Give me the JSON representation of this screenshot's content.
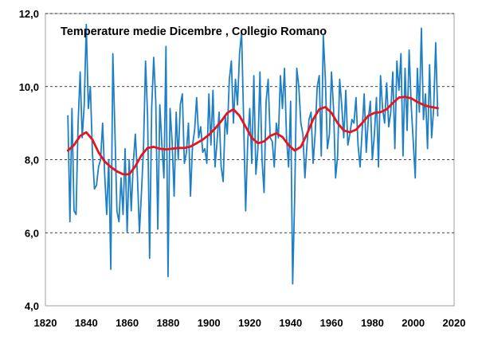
{
  "chart_data": {
    "type": "line",
    "title": "Temperature medie Dicembre  , Collegio Romano",
    "xlim": [
      1820,
      2020
    ],
    "ylim": [
      4,
      12
    ],
    "x_ticks": [
      1820,
      1840,
      1860,
      1880,
      1900,
      1920,
      1940,
      1960,
      1980,
      2000,
      2020
    ],
    "y_ticks": [
      4,
      6,
      8,
      10,
      12
    ],
    "x_tick_labels": [
      "1820",
      "1840",
      "1860",
      "1880",
      "1900",
      "1920",
      "1940",
      "1960",
      "1980",
      "2000",
      "2020"
    ],
    "y_tick_labels": [
      "4,0",
      "6,0",
      "8,0",
      "10,0",
      "12,0"
    ],
    "grid": "horizontal-dashed",
    "colors": {
      "annual": "#1f7fc4",
      "smooth": "#e8141b",
      "grid": "#000000"
    },
    "series": [
      {
        "x": [
          1831,
          1832,
          1833,
          1834,
          1835,
          1836,
          1837,
          1838,
          1839,
          1840,
          1841,
          1842,
          1843,
          1844,
          1845,
          1846,
          1847,
          1848,
          1849,
          1850,
          1851,
          1852,
          1853,
          1854,
          1855,
          1856,
          1857,
          1858,
          1859,
          1860,
          1861,
          1862,
          1863,
          1864,
          1865,
          1866,
          1867,
          1868,
          1869,
          1870,
          1871,
          1872,
          1873,
          1874,
          1875,
          1876,
          1877,
          1878,
          1879,
          1880,
          1881,
          1882,
          1883,
          1884,
          1885,
          1886,
          1887,
          1888,
          1889,
          1890,
          1891,
          1892,
          1893,
          1894,
          1895,
          1896,
          1897,
          1898,
          1899,
          1900,
          1901,
          1902,
          1903,
          1904,
          1905,
          1906,
          1907,
          1908,
          1909,
          1910,
          1911,
          1912,
          1913,
          1914,
          1915,
          1916,
          1917,
          1918,
          1919,
          1920,
          1921,
          1922,
          1923,
          1924,
          1925,
          1926,
          1927,
          1928,
          1929,
          1930,
          1931,
          1932,
          1933,
          1934,
          1935,
          1936,
          1937,
          1938,
          1939,
          1940,
          1941,
          1942,
          1943,
          1944,
          1945,
          1946,
          1947,
          1948,
          1949,
          1950,
          1951,
          1952,
          1953,
          1954,
          1955,
          1956,
          1957,
          1958,
          1959,
          1960,
          1961,
          1962,
          1963,
          1964,
          1965,
          1966,
          1967,
          1968,
          1969,
          1970,
          1971,
          1972,
          1973,
          1974,
          1975,
          1976,
          1977,
          1978,
          1979,
          1980,
          1981,
          1982,
          1983,
          1984,
          1985,
          1986,
          1987,
          1988,
          1989,
          1990,
          1991,
          1992,
          1993,
          1994,
          1995,
          1996,
          1997,
          1998,
          1999,
          2000,
          2001,
          2002,
          2003,
          2004,
          2005,
          2006,
          2007,
          2008,
          2009,
          2010,
          2011,
          2012
        ],
        "values": [
          9.2,
          6.3,
          9.4,
          6.6,
          6.5,
          9.0,
          10.4,
          8.6,
          9.5,
          11.7,
          9.4,
          10.0,
          8.2,
          7.2,
          7.3,
          7.8,
          8.0,
          9.0,
          7.6,
          6.5,
          8.0,
          5.0,
          10.9,
          8.8,
          6.6,
          6.3,
          7.5,
          6.5,
          8.3,
          6.0,
          8.0,
          6.6,
          7.9,
          8.7,
          7.6,
          6.0,
          7.1,
          8.3,
          10.7,
          9.2,
          5.3,
          9.4,
          10.8,
          9.6,
          6.1,
          9.5,
          8.4,
          7.5,
          11.1,
          4.8,
          9.4,
          8.5,
          7.0,
          9.3,
          8.0,
          9.5,
          9.8,
          7.9,
          8.2,
          9.0,
          7.0,
          8.4,
          8.8,
          9.7,
          8.6,
          8.9,
          8.2,
          8.3,
          7.9,
          9.8,
          8.4,
          9.9,
          7.8,
          8.5,
          9.3,
          7.8,
          7.4,
          9.2,
          8.7,
          10.2,
          10.7,
          9.0,
          10.2,
          9.5,
          10.9,
          11.5,
          9.1,
          6.6,
          8.5,
          9.4,
          7.9,
          10.3,
          7.6,
          8.3,
          10.4,
          8.0,
          7.1,
          9.6,
          10.2,
          8.6,
          8.5,
          7.8,
          9.0,
          8.6,
          10.3,
          9.4,
          10.5,
          8.6,
          7.8,
          9.6,
          4.6,
          7.0,
          10.5,
          10.0,
          9.0,
          8.7,
          7.5,
          8.4,
          9.1,
          9.3,
          7.9,
          8.7,
          10.0,
          10.3,
          8.1,
          11.4,
          10.2,
          8.3,
          8.7,
          10.4,
          9.4,
          7.5,
          8.1,
          10.2,
          9.5,
          8.6,
          9.9,
          8.4,
          8.7,
          9.1,
          9.0,
          9.7,
          8.4,
          7.8,
          8.8,
          9.8,
          8.2,
          9.1,
          9.6,
          8.0,
          8.7,
          9.7,
          7.8,
          10.3,
          9.4,
          9.0,
          10.1,
          8.9,
          9.3,
          10.4,
          8.3,
          10.7,
          9.9,
          10.9,
          8.1,
          10.5,
          8.8,
          11.0,
          9.5,
          8.5,
          7.5,
          10.5,
          9.3,
          11.6,
          9.1,
          9.8,
          8.3,
          10.6,
          8.6,
          9.4,
          11.2,
          9.2
        ]
      },
      {
        "x": [
          1831,
          1834,
          1837,
          1840,
          1843,
          1846,
          1849,
          1852,
          1855,
          1858,
          1861,
          1864,
          1867,
          1870,
          1873,
          1876,
          1879,
          1882,
          1885,
          1888,
          1891,
          1894,
          1897,
          1900,
          1903,
          1906,
          1909,
          1912,
          1915,
          1918,
          1921,
          1924,
          1927,
          1930,
          1933,
          1936,
          1939,
          1942,
          1945,
          1948,
          1951,
          1954,
          1957,
          1960,
          1963,
          1966,
          1969,
          1972,
          1975,
          1978,
          1981,
          1984,
          1987,
          1990,
          1993,
          1996,
          1999,
          2002,
          2005,
          2008,
          2011,
          2012
        ],
        "values": [
          8.25,
          8.4,
          8.65,
          8.75,
          8.55,
          8.2,
          7.95,
          7.8,
          7.68,
          7.6,
          7.6,
          7.82,
          8.12,
          8.32,
          8.35,
          8.3,
          8.28,
          8.3,
          8.32,
          8.32,
          8.36,
          8.45,
          8.55,
          8.68,
          8.85,
          9.05,
          9.28,
          9.38,
          9.2,
          8.9,
          8.6,
          8.45,
          8.5,
          8.65,
          8.72,
          8.62,
          8.4,
          8.25,
          8.35,
          8.7,
          9.1,
          9.38,
          9.44,
          9.28,
          9.0,
          8.8,
          8.75,
          8.82,
          9.0,
          9.2,
          9.28,
          9.3,
          9.38,
          9.55,
          9.7,
          9.72,
          9.68,
          9.58,
          9.5,
          9.45,
          9.42,
          9.41
        ]
      }
    ]
  }
}
